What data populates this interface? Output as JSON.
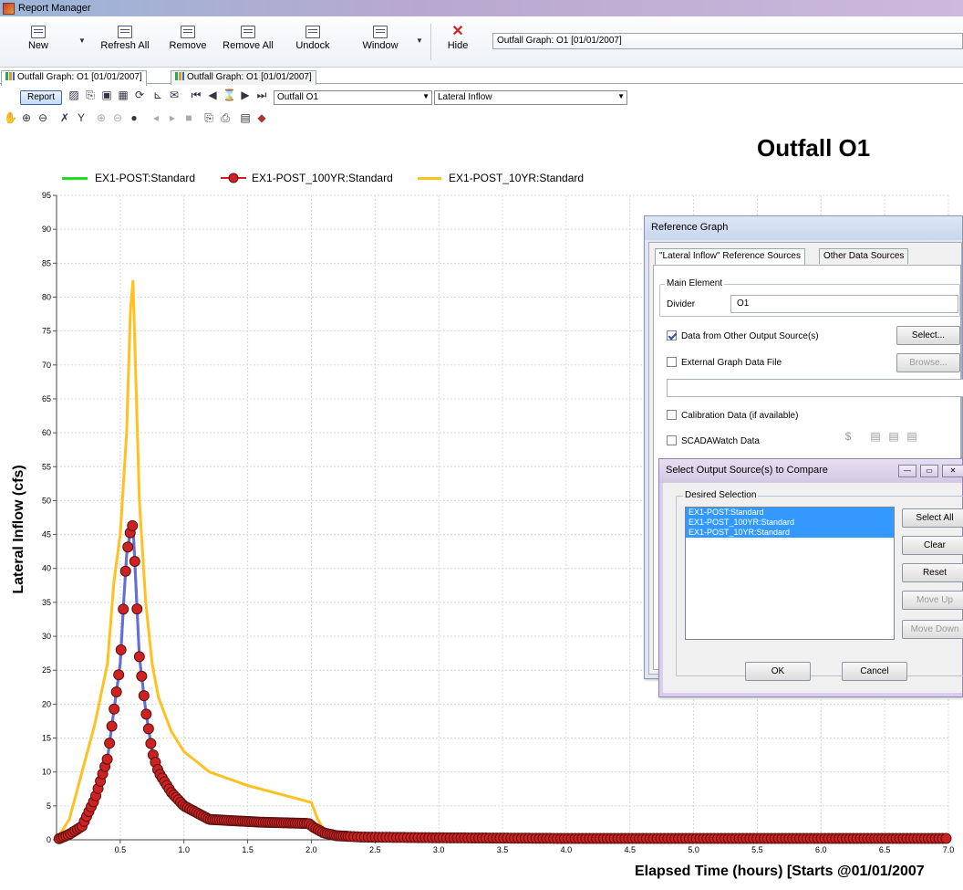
{
  "window": {
    "title": "Report Manager"
  },
  "toolbar": {
    "new": "New",
    "refresh_all": "Refresh All",
    "remove": "Remove",
    "remove_all": "Remove All",
    "undock": "Undock",
    "window": "Window",
    "hide": "Hide",
    "report_combo": "Outfall Graph: O1 [01/01/2007]"
  },
  "tabs": [
    "Outfall Graph: O1 [01/01/2007]",
    "Outfall Graph: O1 [01/01/2007]"
  ],
  "graph_toolbar": {
    "report_button": "Report",
    "element_combo": "Outfall O1",
    "attribute_combo": "Lateral Inflow"
  },
  "chart_data": {
    "type": "line",
    "title": "Outfall O1",
    "xlabel": "Elapsed Time (hours) [Starts @01/01/2007",
    "ylabel": "Lateral Inflow (cfs)",
    "xlim": [
      0,
      7.0
    ],
    "ylim": [
      0,
      95
    ],
    "xticks": [
      0.5,
      1.0,
      1.5,
      2.0,
      2.5,
      3.0,
      3.5,
      4.0,
      4.5,
      5.0,
      5.5,
      6.0,
      6.5,
      7.0
    ],
    "xtick_labels": [
      "0.5",
      "1.0",
      "1.5",
      "2.0",
      "2.5",
      "3.0",
      "3.5",
      "4.0",
      "4.5",
      "5.0",
      "5.5",
      "6.0",
      "6.5",
      "7.0"
    ],
    "yticks": [
      0,
      5,
      10,
      15,
      20,
      25,
      30,
      35,
      40,
      45,
      50,
      55,
      60,
      65,
      70,
      75,
      80,
      85,
      90,
      95
    ],
    "grid": true,
    "legend_position": "top",
    "series": [
      {
        "name": "EX1-POST:Standard",
        "color": "#22dd22",
        "marker": "none",
        "x": [
          0.0,
          0.1,
          0.2,
          0.3,
          0.35,
          0.4,
          0.45,
          0.5,
          0.53,
          0.55,
          0.58,
          0.6,
          0.65,
          0.7,
          0.75,
          0.8,
          0.85,
          0.9,
          1.0,
          1.1,
          1.2,
          1.4,
          1.6,
          1.8,
          1.98,
          2.02,
          2.1,
          2.2,
          2.4,
          3.0,
          4.0,
          5.0,
          6.0,
          7.0
        ],
        "y": [
          0.0,
          0.8,
          2.0,
          6.0,
          9.0,
          12.0,
          19.0,
          26.0,
          36.0,
          42.0,
          45.5,
          46.5,
          27.0,
          19.0,
          13.0,
          10.0,
          8.5,
          7.0,
          5.0,
          4.0,
          3.0,
          2.8,
          2.6,
          2.5,
          2.4,
          1.8,
          1.0,
          0.6,
          0.4,
          0.3,
          0.2,
          0.2,
          0.2,
          0.2
        ]
      },
      {
        "name": "EX1-POST_100YR:Standard",
        "color": "#cc2222",
        "line_color": "#6a6ae0",
        "marker": "circle",
        "x": [
          0.0,
          0.1,
          0.2,
          0.3,
          0.35,
          0.4,
          0.45,
          0.5,
          0.53,
          0.55,
          0.58,
          0.6,
          0.65,
          0.7,
          0.75,
          0.8,
          0.85,
          0.9,
          1.0,
          1.1,
          1.2,
          1.4,
          1.6,
          1.8,
          1.98,
          2.02,
          2.1,
          2.2,
          2.4,
          3.0,
          4.0,
          5.0,
          6.0,
          7.0
        ],
        "y": [
          0.0,
          0.8,
          2.0,
          6.0,
          9.0,
          12.0,
          19.0,
          26.0,
          36.0,
          42.0,
          45.5,
          46.5,
          27.0,
          19.0,
          13.0,
          10.0,
          8.5,
          7.0,
          5.0,
          4.0,
          3.0,
          2.8,
          2.6,
          2.5,
          2.4,
          1.8,
          1.0,
          0.6,
          0.4,
          0.3,
          0.2,
          0.2,
          0.2,
          0.2
        ]
      },
      {
        "name": "EX1-POST_10YR:Standard",
        "color": "#ffc020",
        "marker": "none",
        "x": [
          0.0,
          0.1,
          0.2,
          0.3,
          0.4,
          0.45,
          0.5,
          0.55,
          0.58,
          0.6,
          0.65,
          0.7,
          0.75,
          0.8,
          0.9,
          1.0,
          1.2,
          1.5,
          1.8,
          2.0,
          2.05,
          2.1,
          2.2,
          2.5,
          3.0,
          4.0,
          5.0,
          6.0,
          7.0
        ],
        "y": [
          0.0,
          3.0,
          10.0,
          17.0,
          26.0,
          38.0,
          45.0,
          60.0,
          78.0,
          82.5,
          50.0,
          35.0,
          26.0,
          21.0,
          16.0,
          13.0,
          10.0,
          8.0,
          6.5,
          5.5,
          3.0,
          1.5,
          0.8,
          0.5,
          0.3,
          0.2,
          0.2,
          0.2,
          0.2
        ]
      }
    ]
  },
  "reference_dialog": {
    "title": "Reference Graph",
    "tab_sources": "\"Lateral Inflow\" Reference Sources",
    "tab_other": "Other Data Sources",
    "main_element_label": "Main Element",
    "divider_label": "Divider",
    "divider_value": "O1",
    "data_other_output": "Data from Other Output Source(s)",
    "data_other_output_checked": true,
    "select_button": "Select...",
    "external_graph": "External Graph Data File",
    "browse_button": "Browse...",
    "calibration": "Calibration Data (if available)",
    "scadawatch": "SCADAWatch Data"
  },
  "select_dialog": {
    "title": "Select Output Source(s) to Compare",
    "group_label": "Desired Selection",
    "items": [
      "EX1-POST:Standard",
      "EX1-POST_100YR:Standard",
      "EX1-POST_10YR:Standard"
    ],
    "select_all": "Select All",
    "clear": "Clear",
    "reset": "Reset",
    "move_up": "Move Up",
    "move_down": "Move Down",
    "ok": "OK",
    "cancel": "Cancel"
  }
}
